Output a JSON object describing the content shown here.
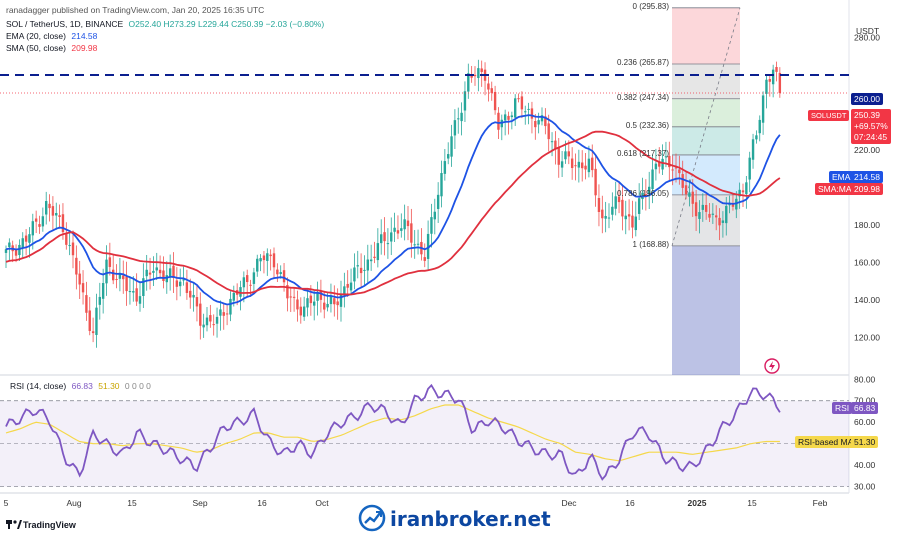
{
  "header": {
    "published": "ranadagger published on TradingView.com, Jan 20, 2025 16:35 UTC",
    "symbol": "SOL / TetherUS, 1D, BINANCE",
    "ohlc": "O252.40 H273.29 L229.44 C250.39 −2.03 (−0.80%)",
    "ema_label": "EMA (20, close)",
    "ema_value": "214.58",
    "sma_label": "SMA (50, close)",
    "sma_value": "209.98",
    "currency": "USDT"
  },
  "rsi_header": {
    "label": "RSI (14, close)",
    "value": "66.83",
    "ma_value": "51.30",
    "extra": "0 0 0 0"
  },
  "tags": {
    "level": "260.00",
    "symbol": "SOLUSDT",
    "price": "250.39",
    "change": "+69.57%",
    "time": "07:24:45",
    "ema": "EMA",
    "ema_val": "214.58",
    "sma": "SMA:MA",
    "sma_val": "209.98",
    "rsi": "RSI",
    "rsi_val": "66.83",
    "rsi_ma": "RSI-based MA",
    "rsi_ma_val": "51.30"
  },
  "fib_levels": [
    {
      "label": "0 (295.83)",
      "price": 295.83
    },
    {
      "label": "0.236 (265.87)",
      "price": 265.87
    },
    {
      "label": "0.382 (247.34)",
      "price": 247.34
    },
    {
      "label": "0.5 (232.36)",
      "price": 232.36
    },
    {
      "label": "0.618 (217.37)",
      "price": 217.37
    },
    {
      "label": "0.786 (196.05)",
      "price": 196.05
    },
    {
      "label": "1 (168.88)",
      "price": 168.88
    }
  ],
  "footer": {
    "brand": "TradingView",
    "watermark": "iranbroker.net"
  },
  "chart_data": [
    {
      "type": "candlestick",
      "title": "SOL / TetherUS, 1D, BINANCE",
      "ylim": [
        100,
        300
      ],
      "y_ticks": [
        120,
        140,
        160,
        180,
        200,
        220,
        240,
        260,
        280
      ],
      "y_tick_labels": [
        "120.00",
        "140.00",
        "160.00",
        "180.00",
        "200.00",
        "220.00",
        "",
        "",
        "280.00"
      ],
      "x_tick_labels": [
        "5",
        "Aug",
        "15",
        "Sep",
        "16",
        "Oct",
        "Dec",
        "16",
        "2025",
        "15",
        "Feb"
      ],
      "horizontal_line": 260.0,
      "current_price": 250.39,
      "control_points": [
        [
          0,
          165
        ],
        [
          6,
          172
        ],
        [
          12,
          190
        ],
        [
          17,
          180
        ],
        [
          22,
          148
        ],
        [
          26,
          122
        ],
        [
          30,
          160
        ],
        [
          34,
          150
        ],
        [
          39,
          142
        ],
        [
          44,
          158
        ],
        [
          48,
          152
        ],
        [
          53,
          150
        ],
        [
          58,
          130
        ],
        [
          63,
          128
        ],
        [
          67,
          140
        ],
        [
          72,
          150
        ],
        [
          76,
          162
        ],
        [
          80,
          162
        ],
        [
          84,
          142
        ],
        [
          89,
          135
        ],
        [
          93,
          142
        ],
        [
          98,
          136
        ],
        [
          102,
          150
        ],
        [
          107,
          158
        ],
        [
          111,
          168
        ],
        [
          116,
          178
        ],
        [
          120,
          178
        ],
        [
          125,
          162
        ],
        [
          129,
          200
        ],
        [
          134,
          232
        ],
        [
          138,
          258
        ],
        [
          143,
          262
        ],
        [
          147,
          232
        ],
        [
          152,
          245
        ],
        [
          156,
          240
        ],
        [
          161,
          232
        ],
        [
          165,
          216
        ],
        [
          169,
          213
        ],
        [
          174,
          212
        ],
        [
          178,
          183
        ],
        [
          183,
          192
        ],
        [
          187,
          180
        ],
        [
          190,
          195
        ],
        [
          194,
          212
        ],
        [
          199,
          214
        ],
        [
          203,
          196
        ],
        [
          207,
          188
        ],
        [
          212,
          183
        ],
        [
          216,
          188
        ],
        [
          220,
          200
        ],
        [
          224,
          228
        ],
        [
          227,
          258
        ],
        [
          229,
          263
        ],
        [
          231,
          250
        ]
      ]
    },
    {
      "type": "line",
      "title": "RSI (14, close)",
      "ylim": [
        27,
        82
      ],
      "y_ticks": [
        30,
        40,
        50,
        60,
        70,
        80
      ],
      "y_tick_labels": [
        "30.00",
        "40.00",
        "",
        "60.00",
        "70.00",
        "80.00"
      ],
      "series": [
        {
          "name": "RSI",
          "values": [
            58,
            62,
            66,
            61,
            44,
            35,
            55,
            49,
            45,
            55,
            50,
            47,
            43,
            39,
            48,
            58,
            60,
            64,
            51,
            45,
            50,
            45,
            55,
            60,
            63,
            68,
            65,
            58,
            70,
            75,
            73,
            71,
            56,
            61,
            58,
            52,
            48,
            45,
            45,
            34,
            44,
            34,
            43,
            56,
            55,
            44,
            40,
            39,
            47,
            57,
            64,
            74,
            73,
            67
          ]
        },
        {
          "name": "RSI-based MA",
          "values": [
            55,
            57,
            60,
            59,
            55,
            51,
            50,
            50,
            49,
            50,
            50,
            49,
            48,
            46,
            47,
            50,
            52,
            55,
            55,
            53,
            53,
            51,
            52,
            54,
            57,
            60,
            62,
            61,
            63,
            66,
            68,
            68,
            65,
            62,
            60,
            58,
            55,
            52,
            50,
            46,
            45,
            43,
            42,
            44,
            46,
            46,
            46,
            45,
            46,
            47,
            48,
            50,
            51,
            51
          ]
        }
      ]
    }
  ]
}
